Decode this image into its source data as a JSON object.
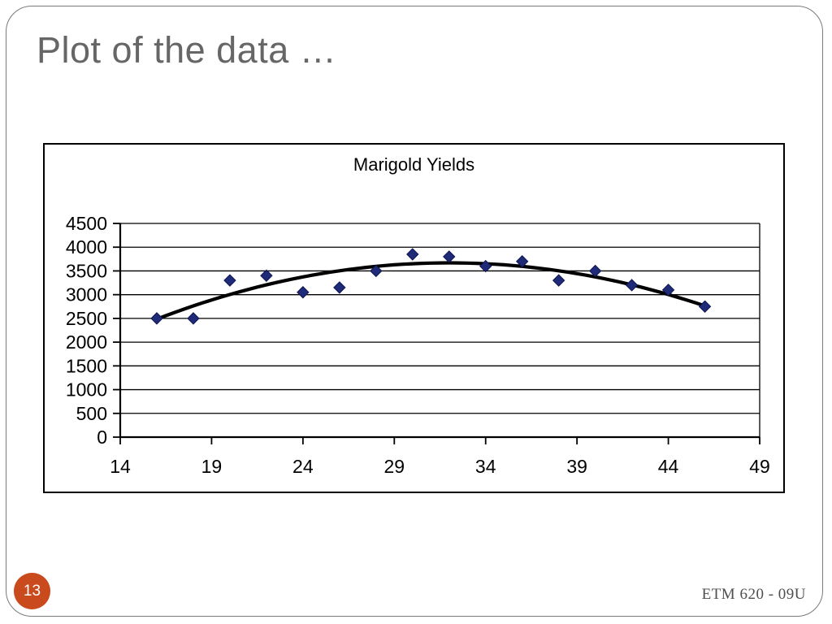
{
  "slide": {
    "title": "Plot of the data …",
    "page_number": "13",
    "footer": "ETM 620 - 09U"
  },
  "colors": {
    "slide_border": "#7a7a7a",
    "title_text": "#666666",
    "footer_text": "#4f4f4f",
    "badge_fill": "#c94b1d",
    "badge_text": "#ffffff",
    "axis": "#000000",
    "marker_fill": "#1f2a78",
    "marker_stroke": "#0d1650",
    "trendline": "#000000"
  },
  "chart_data": {
    "type": "scatter",
    "title": "Marigold Yields",
    "x": [
      16,
      18,
      20,
      22,
      24,
      26,
      28,
      30,
      32,
      34,
      36,
      38,
      40,
      42,
      44,
      46
    ],
    "y": [
      2500,
      2500,
      3300,
      3400,
      3050,
      3150,
      3500,
      3850,
      3800,
      3600,
      3700,
      3300,
      3500,
      3200,
      3100,
      2750
    ],
    "x_ticks": [
      14,
      19,
      24,
      29,
      34,
      39,
      44,
      49
    ],
    "y_ticks": [
      0,
      500,
      1000,
      1500,
      2000,
      2500,
      3000,
      3500,
      4000,
      4500
    ],
    "xlim": [
      14,
      49
    ],
    "ylim": [
      0,
      4500
    ],
    "xlabel": "",
    "ylabel": "",
    "grid": "horizontal",
    "legend": "none",
    "marker": "diamond",
    "trendline": {
      "type": "quadratic",
      "equation_approx": "yield ≈ 3670 − 4.63·(x − 32)²",
      "a": 4.63,
      "peak_x": 32,
      "peak_y": 3670,
      "x_start": 16,
      "x_end": 46
    }
  }
}
